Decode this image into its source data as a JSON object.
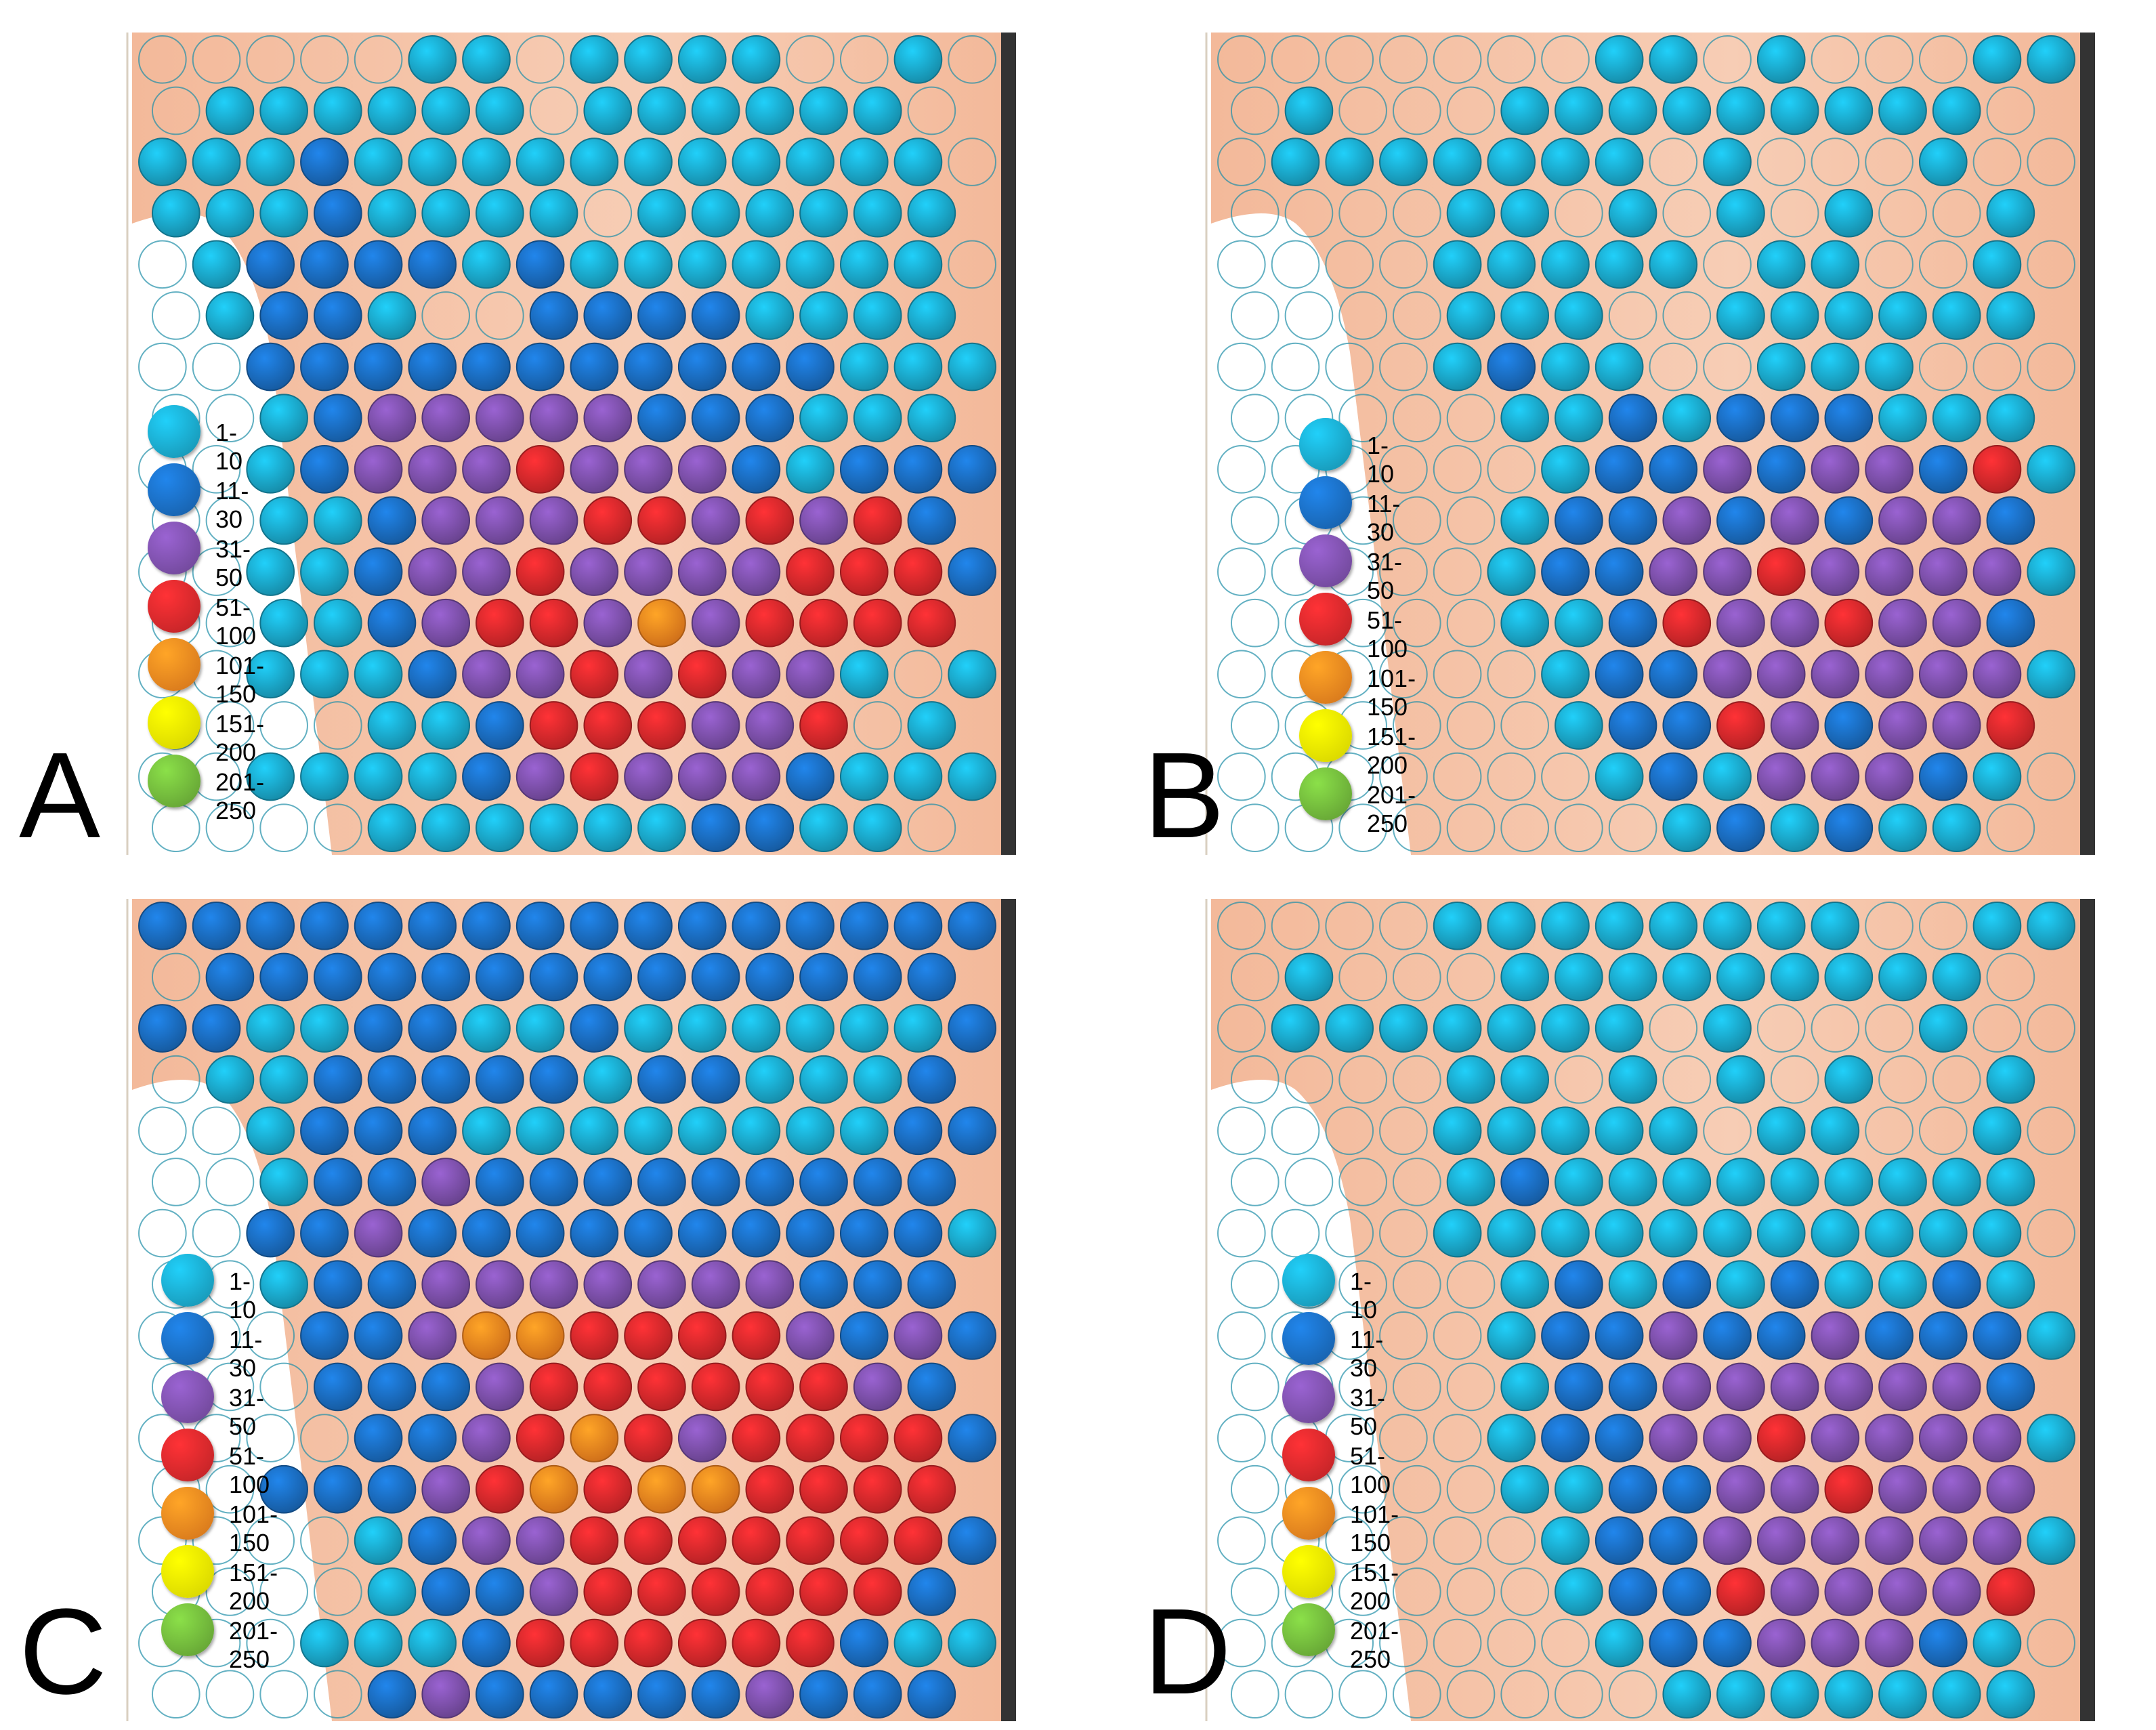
{
  "legend": {
    "bins": [
      {
        "label": "1-10",
        "color": "#1aa6c8"
      },
      {
        "label": "11-30",
        "color": "#1a6bbd"
      },
      {
        "label": "31-50",
        "color": "#7b4fa8"
      },
      {
        "label": "51-100",
        "color": "#d8282b"
      },
      {
        "label": "101-150",
        "color": "#f5841f"
      },
      {
        "label": "151-200",
        "color": "#f7f400"
      },
      {
        "label": "201-250",
        "color": "#6fb33a"
      }
    ]
  },
  "colors": {
    "skin": "#f3b99a",
    "skin_light": "#f7cdb5",
    "outline": "#1f8fa8",
    "bar": "#333333"
  },
  "chart_data": [
    {
      "type": "heatmap",
      "panel": "A",
      "title": "",
      "category_bins": [
        "1-10",
        "11-30",
        "31-50",
        "51-100",
        "101-150",
        "151-200",
        "201-250"
      ],
      "note": "row-major grid; 0 = empty outline, 1..7 = legend bin index",
      "rows": [
        "0000011011110010",
        "0111111011111100",
        "1112111111111110",
        "1112111101111111",
        "0122221211111110",
        "0122100222211111",
        "0022222222222111",
        "0012333332221111",
        "0012333433321222",
        "0011233344343421",
        "0011233433334442",
        "0011234435344441",
        "0011123343433101",
        "0000112444334011",
        "0011112343332111",
        "0000111111221101"
      ]
    },
    {
      "type": "heatmap",
      "panel": "B",
      "title": "",
      "category_bins": [
        "1-10",
        "11-30",
        "31-50",
        "51-100",
        "101-150",
        "151-200",
        "201-250"
      ],
      "note": "row-major grid; 0 = empty outline, 1..7 = legend bin index",
      "rows": [
        "0000000110100011",
        "0100011111111101",
        "0111111101000100",
        "0000110101010010",
        "0000111110110010",
        "0000111001111110",
        "0000121100111000",
        "0000011212221110",
        "0000001223233241",
        "0000012232323321",
        "0000012233433331",
        "0000011243343321",
        "0000001223333331",
        "0000001224323341",
        "0000000121333210",
        "0000000012121100"
      ]
    },
    {
      "type": "heatmap",
      "panel": "C",
      "title": "",
      "category_bins": [
        "1-10",
        "11-30",
        "31-50",
        "51-100",
        "101-150",
        "151-200",
        "201-250"
      ],
      "note": "row-major grid; 0 = empty outline, 1..7 = legend bin index",
      "rows": [
        "2222222222222222",
        "0222222222222222",
        "2211221121111112",
        "0112222212211122",
        "0012221111111122",
        "0012232222222221",
        "0022322222222221",
        "0012233333332222",
        "0002235544443232",
        "0002223444444322",
        "0000223454344442",
        "0022234545544442",
        "0000123344444442",
        "0000122344444421",
        "0001112444444211",
        "0000232222232221"
      ]
    },
    {
      "type": "heatmap",
      "panel": "D",
      "title": "",
      "category_bins": [
        "1-10",
        "11-30",
        "31-50",
        "51-100",
        "101-150",
        "151-200",
        "201-250"
      ],
      "note": "row-major grid; 0 = empty outline, 1..7 = legend bin index",
      "rows": [
        "0000111111110011",
        "0100011111111101",
        "0111111101000100",
        "0000110101010010",
        "0000111110110010",
        "0000121111111110",
        "0000111111111110",
        "0000012121211211",
        "0000012232232221",
        "0000012233333321",
        "0000012233433331",
        "0000011223343331",
        "0000001223333331",
        "0000001224333341",
        "0000000122333210",
        "0000000011111111"
      ]
    }
  ],
  "panels": [
    {
      "label": "A"
    },
    {
      "label": "B"
    },
    {
      "label": "C"
    },
    {
      "label": "D"
    }
  ]
}
